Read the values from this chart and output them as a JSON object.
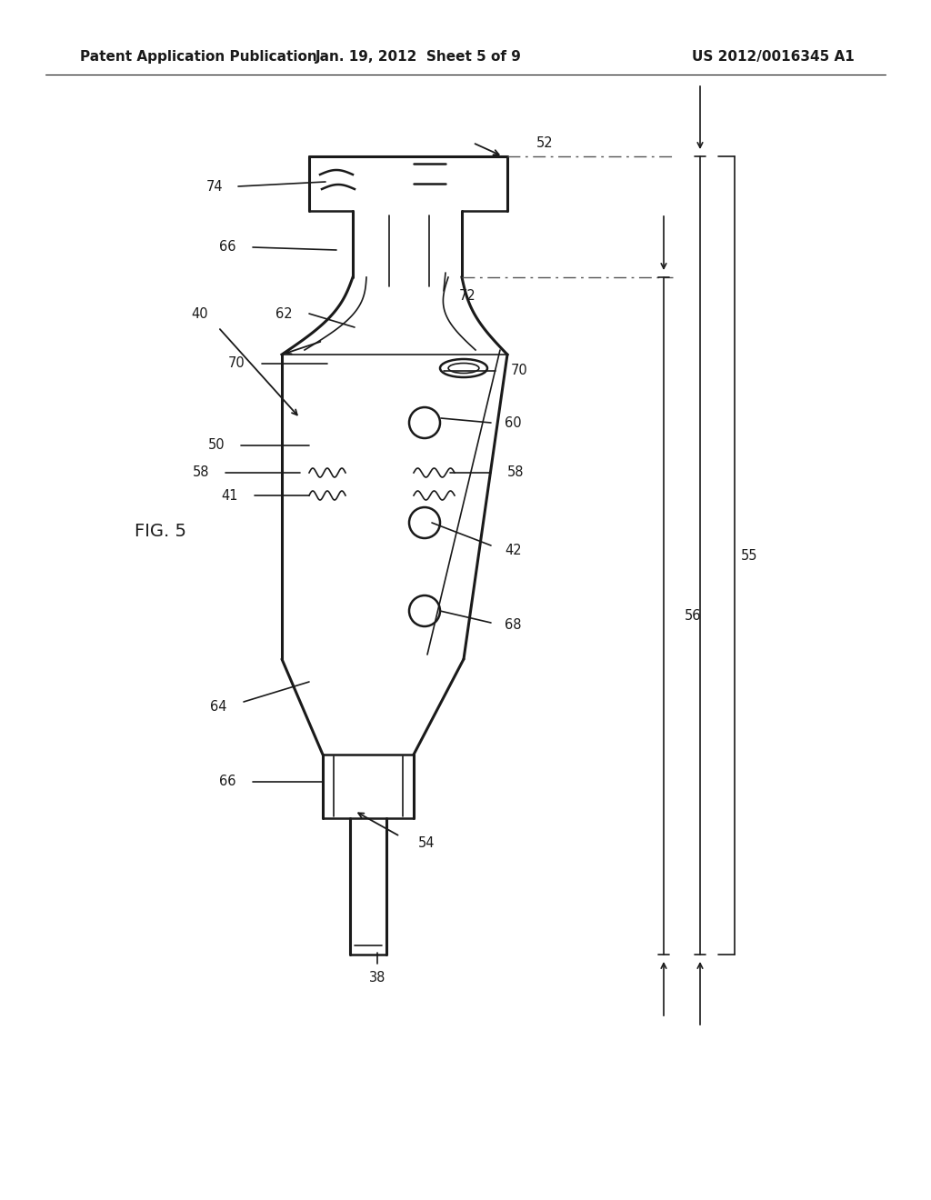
{
  "bg_color": "#ffffff",
  "line_color": "#1a1a1a",
  "header_left": "Patent Application Publication",
  "header_center": "Jan. 19, 2012  Sheet 5 of 9",
  "header_right": "US 2012/0016345 A1",
  "fig_label": "FIG. 5"
}
